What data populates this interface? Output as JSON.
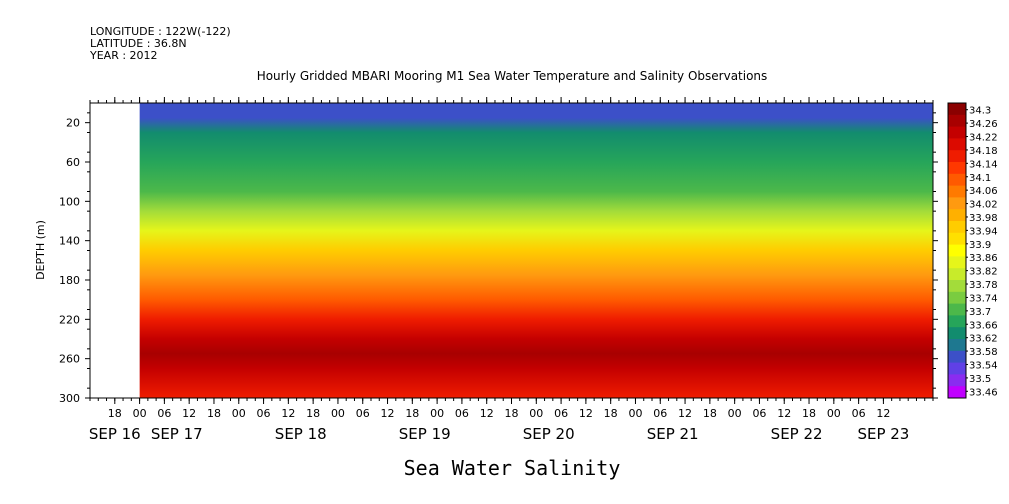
{
  "header": {
    "longitude": "LONGITUDE : 122W(-122)",
    "latitude": "LATITUDE : 36.8N",
    "year": "YEAR : 2012"
  },
  "chart_data": {
    "type": "heatmap",
    "title": "Hourly Gridded MBARI Mooring M1 Sea Water Temperature and Salinity Observations",
    "subtitle": "Sea Water Salinity",
    "ylabel": "DEPTH (m)",
    "xlabel": "",
    "y_axis": {
      "reversed": true,
      "range": [
        0,
        300
      ],
      "ticks": [
        20,
        60,
        100,
        140,
        180,
        220,
        260,
        300
      ]
    },
    "x_axis": {
      "range_hours": [
        -12,
        192
      ],
      "hour_ticks": [
        "18",
        "00",
        "06",
        "12",
        "18",
        "00",
        "06",
        "12",
        "18",
        "00",
        "06",
        "12",
        "18",
        "00",
        "06",
        "12",
        "18",
        "00",
        "06",
        "12",
        "18",
        "00",
        "06",
        "12",
        "18",
        "00",
        "06",
        "12",
        "18",
        "00",
        "06",
        "12"
      ],
      "hour_tick_values": [
        -6,
        0,
        6,
        12,
        18,
        24,
        30,
        36,
        42,
        48,
        54,
        60,
        66,
        72,
        78,
        84,
        90,
        96,
        102,
        108,
        114,
        120,
        126,
        132,
        138,
        144,
        150,
        156,
        162,
        168,
        174,
        180
      ],
      "date_labels": [
        "SEP 16",
        "SEP 17",
        "SEP 18",
        "SEP 19",
        "SEP 20",
        "SEP 21",
        "SEP 22",
        "SEP 23"
      ],
      "date_label_hours": [
        -6,
        9,
        39,
        69,
        99,
        129,
        159,
        180
      ]
    },
    "data_start_hour": 0,
    "colorbar": {
      "levels": [
        "34.3",
        "34.26",
        "34.22",
        "34.18",
        "34.14",
        "34.1",
        "34.06",
        "34.02",
        "33.98",
        "33.94",
        "33.9",
        "33.86",
        "33.82",
        "33.78",
        "33.74",
        "33.7",
        "33.66",
        "33.62",
        "33.58",
        "33.54",
        "33.5",
        "33.46"
      ],
      "colors": [
        "#8b0000",
        "#a80000",
        "#c40000",
        "#dc0a00",
        "#ef1c00",
        "#ff3800",
        "#ff5a00",
        "#ff7a00",
        "#ff9a10",
        "#ffb000",
        "#ffcc00",
        "#ffe000",
        "#ffff00",
        "#e6f51a",
        "#c8eb2a",
        "#a3dc3a",
        "#7acc40",
        "#4cb84a",
        "#26a55a",
        "#128c6e",
        "#1e7890",
        "#3c50c8",
        "#6040e6",
        "#8a2cf0",
        "#c000ff"
      ]
    },
    "depth_profile": [
      {
        "depth": 5,
        "value": 33.55
      },
      {
        "depth": 15,
        "value": 33.58
      },
      {
        "depth": 30,
        "value": 33.62
      },
      {
        "depth": 60,
        "value": 33.66
      },
      {
        "depth": 90,
        "value": 33.7
      },
      {
        "depth": 110,
        "value": 33.76
      },
      {
        "depth": 130,
        "value": 33.86
      },
      {
        "depth": 150,
        "value": 33.96
      },
      {
        "depth": 175,
        "value": 34.02
      },
      {
        "depth": 200,
        "value": 34.08
      },
      {
        "depth": 220,
        "value": 34.16
      },
      {
        "depth": 240,
        "value": 34.24
      },
      {
        "depth": 255,
        "value": 34.28
      },
      {
        "depth": 270,
        "value": 34.24
      },
      {
        "depth": 300,
        "value": 34.16
      }
    ]
  }
}
